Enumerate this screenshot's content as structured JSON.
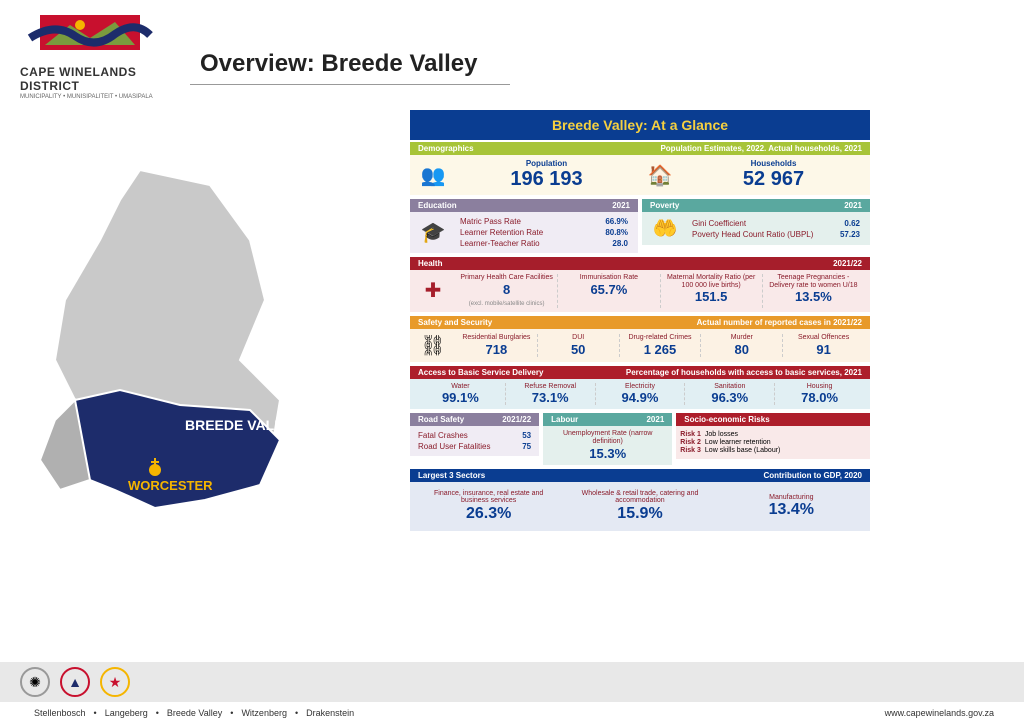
{
  "header": {
    "logo_line1": "CAPE WINELANDS DISTRICT",
    "logo_line2": "MUNICIPALITY • MUNISIPALITEIT • UMASIPALA",
    "title": "Overview:  Breede Valley"
  },
  "map": {
    "region_label": "BREEDE VALLEY",
    "city_label": "WORCESTER",
    "district_fill": "#c9c9c9",
    "highlight_fill": "#1d2c6b",
    "region_text_color": "#ffffff",
    "city_text_color": "#f5b500",
    "pin_color": "#f5b500"
  },
  "dashboard": {
    "banner": "Breede Valley: At a Glance",
    "colors": {
      "banner_bg": "#0a3d91",
      "banner_text": "#f5d040",
      "demo_head": "#a7c438",
      "demo_body": "#fdf8e8",
      "edu_head": "#8b7f9e",
      "edu_body": "#f0ecf4",
      "pov_head": "#5aa89f",
      "pov_body": "#e4f0ed",
      "health_head": "#a61e2b",
      "health_body": "#f9e9e9",
      "safety_head": "#e89a2a",
      "safety_body": "#fcf2e4",
      "access_head": "#ad1e2b",
      "access_body": "#e1eff3",
      "sectors_head": "#0a3d91",
      "sectors_body": "#e4e9f3",
      "value_color": "#0a3d91",
      "label_color": "#8a1c2b"
    },
    "demographics": {
      "title": "Demographics",
      "subtitle": "Population Estimates, 2022. Actual households, 2021",
      "population_label": "Population",
      "population_value": "196 193",
      "households_label": "Households",
      "households_value": "52 967"
    },
    "education": {
      "title": "Education",
      "year": "2021",
      "rows": [
        {
          "label": "Matric Pass Rate",
          "value": "66.9%"
        },
        {
          "label": "Learner Retention Rate",
          "value": "80.8%"
        },
        {
          "label": "Learner-Teacher Ratio",
          "value": "28.0"
        }
      ]
    },
    "poverty": {
      "title": "Poverty",
      "year": "2021",
      "rows": [
        {
          "label": "Gini Coefficient",
          "value": "0.62"
        },
        {
          "label": "Poverty Head Count Ratio (UBPL)",
          "value": "57.23"
        }
      ]
    },
    "health": {
      "title": "Health",
      "year": "2021/22",
      "cells": [
        {
          "label": "Primary Health Care Facilities",
          "value": "8",
          "note": "(excl. mobile/satellite clinics)"
        },
        {
          "label": "Immunisation Rate",
          "value": "65.7%"
        },
        {
          "label": "Maternal Mortality Ratio (per 100 000 live births)",
          "value": "151.5"
        },
        {
          "label": "Teenage Pregnancies - Delivery rate to women U/18",
          "value": "13.5%"
        }
      ]
    },
    "safety": {
      "title": "Safety and Security",
      "subtitle": "Actual number of reported cases in 2021/22",
      "cells": [
        {
          "label": "Residential Burglaries",
          "value": "718"
        },
        {
          "label": "DUI",
          "value": "50"
        },
        {
          "label": "Drug-related Crimes",
          "value": "1 265"
        },
        {
          "label": "Murder",
          "value": "80"
        },
        {
          "label": "Sexual Offences",
          "value": "91"
        }
      ]
    },
    "access": {
      "title": "Access to Basic Service Delivery",
      "subtitle": "Percentage of households with access to basic services, 2021",
      "cells": [
        {
          "label": "Water",
          "value": "99.1%"
        },
        {
          "label": "Refuse Removal",
          "value": "73.1%"
        },
        {
          "label": "Electricity",
          "value": "94.9%"
        },
        {
          "label": "Sanitation",
          "value": "96.3%"
        },
        {
          "label": "Housing",
          "value": "78.0%"
        }
      ]
    },
    "road_safety": {
      "title": "Road Safety",
      "year": "2021/22",
      "rows": [
        {
          "label": "Fatal Crashes",
          "value": "53"
        },
        {
          "label": "Road User Fatalities",
          "value": "75"
        }
      ]
    },
    "labour": {
      "title": "Labour",
      "year": "2021",
      "label": "Unemployment Rate (narrow definition)",
      "value": "15.3%"
    },
    "risks": {
      "title": "Socio-economic Risks",
      "items": [
        {
          "tag": "Risk 1",
          "text": "Job losses"
        },
        {
          "tag": "Risk 2",
          "text": "Low learner retention"
        },
        {
          "tag": "Risk 3",
          "text": "Low skills base (Labour)"
        }
      ]
    },
    "sectors": {
      "title": "Largest 3 Sectors",
      "subtitle": "Contribution to GDP, 2020",
      "cells": [
        {
          "label": "Finance, insurance, real estate and business services",
          "value": "26.3%"
        },
        {
          "label": "Wholesale & retail trade, catering and accommodation",
          "value": "15.9%"
        },
        {
          "label": "Manufacturing",
          "value": "13.4%"
        }
      ]
    }
  },
  "footer": {
    "municipalities": [
      "Stellenbosch",
      "Langeberg",
      "Breede Valley",
      "Witzenberg",
      "Drakenstein"
    ],
    "url": "www.capewinelands.gov.za"
  }
}
